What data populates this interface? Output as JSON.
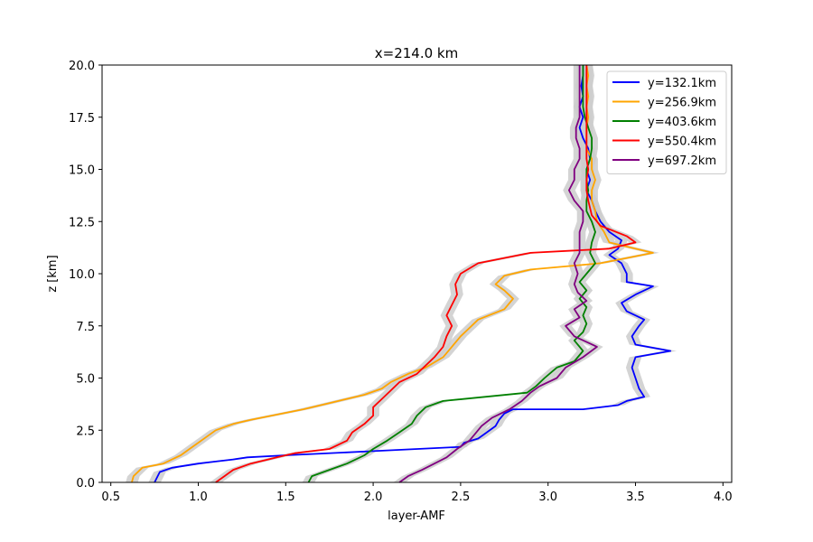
{
  "chart_data": {
    "type": "line",
    "title": "x=214.0 km",
    "xlabel": "layer-AMF",
    "ylabel": "z [km]",
    "xlim": [
      0.45,
      4.05
    ],
    "ylim": [
      0,
      20
    ],
    "xticks": [
      "0.5",
      "1.0",
      "1.5",
      "2.0",
      "2.5",
      "3.0",
      "3.5",
      "4.0"
    ],
    "yticks": [
      "0.0",
      "2.5",
      "5.0",
      "7.5",
      "10.0",
      "12.5",
      "15.0",
      "17.5",
      "20.0"
    ],
    "grid": false,
    "legend_position": "top-right",
    "uncertainty_color": "#cccccc",
    "series": [
      {
        "name": "y=132.1km",
        "color": "#0000ff",
        "points": [
          [
            0.75,
            0
          ],
          [
            0.78,
            0.5
          ],
          [
            0.85,
            0.7
          ],
          [
            1.0,
            0.9
          ],
          [
            1.1,
            1.0
          ],
          [
            1.2,
            1.1
          ],
          [
            1.28,
            1.2
          ],
          [
            1.5,
            1.3
          ],
          [
            2.0,
            1.5
          ],
          [
            2.5,
            1.7
          ],
          [
            2.52,
            1.9
          ],
          [
            2.6,
            2.1
          ],
          [
            2.65,
            2.4
          ],
          [
            2.7,
            2.7
          ],
          [
            2.72,
            3.0
          ],
          [
            2.75,
            3.3
          ],
          [
            2.8,
            3.5
          ],
          [
            3.2,
            3.5
          ],
          [
            3.4,
            3.7
          ],
          [
            3.45,
            3.9
          ],
          [
            3.55,
            4.1
          ],
          [
            3.52,
            4.5
          ],
          [
            3.5,
            5.0
          ],
          [
            3.48,
            5.5
          ],
          [
            3.5,
            6.0
          ],
          [
            3.7,
            6.3
          ],
          [
            3.5,
            6.6
          ],
          [
            3.48,
            7.0
          ],
          [
            3.52,
            7.5
          ],
          [
            3.55,
            7.8
          ],
          [
            3.45,
            8.2
          ],
          [
            3.42,
            8.6
          ],
          [
            3.5,
            9.0
          ],
          [
            3.6,
            9.4
          ],
          [
            3.45,
            9.6
          ],
          [
            3.45,
            10.0
          ],
          [
            3.42,
            10.5
          ],
          [
            3.35,
            10.9
          ],
          [
            3.4,
            11.2
          ],
          [
            3.42,
            11.6
          ],
          [
            3.35,
            12.0
          ],
          [
            3.3,
            12.5
          ],
          [
            3.27,
            13.0
          ],
          [
            3.25,
            13.5
          ],
          [
            3.22,
            14.0
          ],
          [
            3.24,
            14.5
          ],
          [
            3.22,
            15.0
          ],
          [
            3.24,
            15.5
          ],
          [
            3.23,
            16.0
          ],
          [
            3.2,
            16.5
          ],
          [
            3.18,
            17.0
          ],
          [
            3.2,
            17.5
          ],
          [
            3.18,
            18.0
          ],
          [
            3.2,
            18.5
          ],
          [
            3.19,
            19.0
          ],
          [
            3.2,
            19.5
          ],
          [
            3.2,
            20
          ]
        ]
      },
      {
        "name": "y=256.9km",
        "color": "#ffa500",
        "points": [
          [
            0.62,
            0
          ],
          [
            0.63,
            0.3
          ],
          [
            0.68,
            0.7
          ],
          [
            0.8,
            0.9
          ],
          [
            0.85,
            1.1
          ],
          [
            0.9,
            1.3
          ],
          [
            0.95,
            1.6
          ],
          [
            1.0,
            1.9
          ],
          [
            1.05,
            2.2
          ],
          [
            1.1,
            2.5
          ],
          [
            1.2,
            2.8
          ],
          [
            1.3,
            3.0
          ],
          [
            1.6,
            3.5
          ],
          [
            1.75,
            3.8
          ],
          [
            1.95,
            4.2
          ],
          [
            2.05,
            4.5
          ],
          [
            2.1,
            4.8
          ],
          [
            2.2,
            5.2
          ],
          [
            2.3,
            5.5
          ],
          [
            2.4,
            6.0
          ],
          [
            2.45,
            6.5
          ],
          [
            2.5,
            7.0
          ],
          [
            2.55,
            7.4
          ],
          [
            2.6,
            7.8
          ],
          [
            2.75,
            8.3
          ],
          [
            2.8,
            8.8
          ],
          [
            2.75,
            9.2
          ],
          [
            2.7,
            9.5
          ],
          [
            2.75,
            9.9
          ],
          [
            2.9,
            10.2
          ],
          [
            3.3,
            10.5
          ],
          [
            3.6,
            11.0
          ],
          [
            3.45,
            11.3
          ],
          [
            3.35,
            11.5
          ],
          [
            3.32,
            12.0
          ],
          [
            3.28,
            12.5
          ],
          [
            3.27,
            13.0
          ],
          [
            3.25,
            13.5
          ],
          [
            3.25,
            14.0
          ],
          [
            3.27,
            14.5
          ],
          [
            3.25,
            15.0
          ],
          [
            3.25,
            15.5
          ],
          [
            3.22,
            16.0
          ],
          [
            3.22,
            16.5
          ],
          [
            3.22,
            17.0
          ],
          [
            3.23,
            17.5
          ],
          [
            3.22,
            18.0
          ],
          [
            3.23,
            18.5
          ],
          [
            3.22,
            19.0
          ],
          [
            3.23,
            19.5
          ],
          [
            3.22,
            20
          ]
        ]
      },
      {
        "name": "y=403.6km",
        "color": "#008000",
        "points": [
          [
            1.63,
            0
          ],
          [
            1.65,
            0.3
          ],
          [
            1.75,
            0.6
          ],
          [
            1.85,
            0.9
          ],
          [
            1.95,
            1.3
          ],
          [
            2.0,
            1.6
          ],
          [
            2.08,
            2.0
          ],
          [
            2.15,
            2.4
          ],
          [
            2.22,
            2.8
          ],
          [
            2.25,
            3.2
          ],
          [
            2.3,
            3.6
          ],
          [
            2.4,
            3.9
          ],
          [
            2.88,
            4.3
          ],
          [
            2.93,
            4.6
          ],
          [
            2.98,
            5.0
          ],
          [
            3.05,
            5.5
          ],
          [
            3.15,
            5.8
          ],
          [
            3.2,
            6.3
          ],
          [
            3.15,
            6.8
          ],
          [
            3.2,
            7.2
          ],
          [
            3.22,
            7.6
          ],
          [
            3.2,
            8.0
          ],
          [
            3.22,
            8.4
          ],
          [
            3.18,
            8.8
          ],
          [
            3.22,
            9.2
          ],
          [
            3.18,
            9.6
          ],
          [
            3.22,
            10.0
          ],
          [
            3.27,
            10.5
          ],
          [
            3.24,
            11.0
          ],
          [
            3.25,
            11.5
          ],
          [
            3.27,
            12.0
          ],
          [
            3.25,
            12.5
          ],
          [
            3.22,
            13.0
          ],
          [
            3.22,
            13.5
          ],
          [
            3.23,
            14.0
          ],
          [
            3.22,
            14.5
          ],
          [
            3.22,
            15.0
          ],
          [
            3.24,
            15.5
          ],
          [
            3.25,
            16.0
          ],
          [
            3.25,
            16.5
          ],
          [
            3.23,
            17.0
          ],
          [
            3.21,
            17.5
          ],
          [
            3.2,
            18.0
          ],
          [
            3.2,
            18.5
          ],
          [
            3.2,
            19.0
          ],
          [
            3.2,
            19.5
          ],
          [
            3.2,
            20
          ]
        ]
      },
      {
        "name": "y=550.4km",
        "color": "#ff0000",
        "points": [
          [
            1.1,
            0
          ],
          [
            1.15,
            0.3
          ],
          [
            1.2,
            0.6
          ],
          [
            1.3,
            0.9
          ],
          [
            1.45,
            1.2
          ],
          [
            1.55,
            1.4
          ],
          [
            1.75,
            1.6
          ],
          [
            1.85,
            2.0
          ],
          [
            1.88,
            2.4
          ],
          [
            1.95,
            2.8
          ],
          [
            2.0,
            3.2
          ],
          [
            2.0,
            3.6
          ],
          [
            2.05,
            4.0
          ],
          [
            2.1,
            4.4
          ],
          [
            2.15,
            4.8
          ],
          [
            2.25,
            5.2
          ],
          [
            2.3,
            5.6
          ],
          [
            2.35,
            6.0
          ],
          [
            2.4,
            6.5
          ],
          [
            2.42,
            7.0
          ],
          [
            2.45,
            7.5
          ],
          [
            2.42,
            8.0
          ],
          [
            2.45,
            8.5
          ],
          [
            2.48,
            9.0
          ],
          [
            2.47,
            9.5
          ],
          [
            2.5,
            10.0
          ],
          [
            2.6,
            10.5
          ],
          [
            2.9,
            11.0
          ],
          [
            3.35,
            11.2
          ],
          [
            3.5,
            11.5
          ],
          [
            3.45,
            11.8
          ],
          [
            3.3,
            12.3
          ],
          [
            3.25,
            12.8
          ],
          [
            3.23,
            13.5
          ],
          [
            3.22,
            14.0
          ],
          [
            3.22,
            14.5
          ],
          [
            3.23,
            15.0
          ],
          [
            3.22,
            15.5
          ],
          [
            3.22,
            16.0
          ],
          [
            3.22,
            16.5
          ],
          [
            3.22,
            17.0
          ],
          [
            3.22,
            17.5
          ],
          [
            3.22,
            18.0
          ],
          [
            3.22,
            18.5
          ],
          [
            3.22,
            19.0
          ],
          [
            3.22,
            19.5
          ],
          [
            3.22,
            20
          ]
        ]
      },
      {
        "name": "y=697.2km",
        "color": "#800080",
        "points": [
          [
            2.15,
            0
          ],
          [
            2.2,
            0.3
          ],
          [
            2.28,
            0.6
          ],
          [
            2.35,
            0.9
          ],
          [
            2.42,
            1.2
          ],
          [
            2.48,
            1.6
          ],
          [
            2.55,
            2.0
          ],
          [
            2.58,
            2.3
          ],
          [
            2.62,
            2.7
          ],
          [
            2.68,
            3.1
          ],
          [
            2.78,
            3.5
          ],
          [
            2.85,
            3.9
          ],
          [
            2.9,
            4.3
          ],
          [
            2.95,
            4.6
          ],
          [
            3.05,
            5.0
          ],
          [
            3.1,
            5.5
          ],
          [
            3.2,
            6.0
          ],
          [
            3.28,
            6.5
          ],
          [
            3.15,
            7.0
          ],
          [
            3.1,
            7.5
          ],
          [
            3.18,
            7.9
          ],
          [
            3.15,
            8.3
          ],
          [
            3.22,
            8.7
          ],
          [
            3.17,
            9.1
          ],
          [
            3.15,
            9.5
          ],
          [
            3.17,
            10.0
          ],
          [
            3.15,
            10.5
          ],
          [
            3.18,
            11.0
          ],
          [
            3.18,
            11.5
          ],
          [
            3.18,
            12.0
          ],
          [
            3.2,
            12.5
          ],
          [
            3.2,
            13.0
          ],
          [
            3.15,
            13.5
          ],
          [
            3.12,
            14.0
          ],
          [
            3.15,
            14.5
          ],
          [
            3.15,
            15.0
          ],
          [
            3.18,
            15.5
          ],
          [
            3.18,
            16.0
          ],
          [
            3.16,
            16.5
          ],
          [
            3.16,
            17.0
          ],
          [
            3.18,
            17.5
          ],
          [
            3.18,
            18.0
          ],
          [
            3.18,
            18.5
          ],
          [
            3.18,
            19.0
          ],
          [
            3.18,
            19.5
          ],
          [
            3.18,
            20
          ]
        ]
      }
    ]
  }
}
